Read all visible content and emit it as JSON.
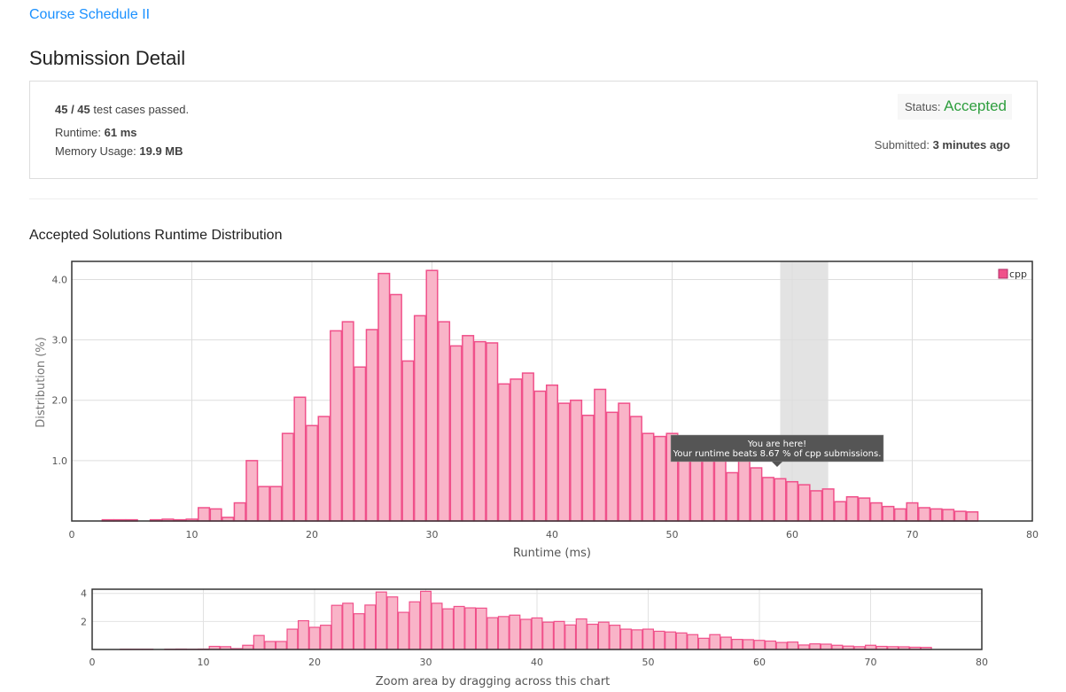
{
  "problem": {
    "title": "Course Schedule II"
  },
  "header": {
    "title": "Submission Detail"
  },
  "submission": {
    "cases_passed": "45 / 45",
    "cases_label": "test cases passed.",
    "runtime_label": "Runtime:",
    "runtime": "61 ms",
    "memory_label": "Memory Usage:",
    "memory": "19.9 MB",
    "status_label": "Status:",
    "status": "Accepted",
    "submitted_label": "Submitted:",
    "submitted": "3 minutes ago"
  },
  "distribution": {
    "title": "Accepted Solutions Runtime Distribution"
  },
  "chart_data": [
    {
      "type": "bar",
      "xlabel": "Runtime (ms)",
      "ylabel": "Distribution (%)",
      "xlim": [
        0,
        80
      ],
      "ylim": [
        0,
        4.3
      ],
      "xticks": [
        "0",
        "10",
        "20",
        "30",
        "40",
        "50",
        "60",
        "70",
        "80"
      ],
      "yticks": [
        "1.0",
        "2.0",
        "3.0",
        "4.0"
      ],
      "legend": {
        "label": "cpp",
        "placement": "top-right"
      },
      "grid": true,
      "highlight_range": [
        59,
        63
      ],
      "tooltip": {
        "line1": "You are here!",
        "line2": "Your runtime beats 8.67 % of cpp submissions."
      },
      "series": [
        {
          "name": "cpp",
          "color": "#f0508a",
          "fill": "#f9b4c8",
          "x": [
            3,
            4,
            5,
            7,
            8,
            9,
            10,
            11,
            12,
            13,
            14,
            15,
            16,
            17,
            18,
            19,
            20,
            21,
            22,
            23,
            24,
            25,
            26,
            27,
            28,
            29,
            30,
            31,
            32,
            33,
            34,
            35,
            36,
            37,
            38,
            39,
            40,
            41,
            42,
            43,
            44,
            45,
            46,
            47,
            48,
            49,
            50,
            51,
            52,
            53,
            54,
            55,
            56,
            57,
            58,
            59,
            60,
            61,
            62,
            63,
            64,
            65,
            66,
            67,
            68,
            69,
            70,
            71,
            72,
            73,
            74,
            75
          ],
          "values": [
            0.02,
            0.02,
            0.02,
            0.02,
            0.03,
            0.02,
            0.03,
            0.22,
            0.2,
            0.06,
            0.3,
            1.0,
            0.57,
            0.57,
            1.45,
            2.05,
            1.58,
            1.73,
            3.15,
            3.3,
            2.55,
            3.17,
            4.1,
            3.75,
            2.65,
            3.4,
            4.15,
            3.3,
            2.9,
            3.07,
            2.97,
            2.95,
            2.27,
            2.35,
            2.45,
            2.15,
            2.25,
            1.95,
            2.0,
            1.75,
            2.18,
            1.8,
            1.95,
            1.73,
            1.45,
            1.4,
            1.45,
            1.3,
            1.25,
            1.18,
            1.06,
            0.8,
            1.06,
            0.88,
            0.72,
            0.7,
            0.65,
            0.6,
            0.5,
            0.53,
            0.32,
            0.4,
            0.38,
            0.3,
            0.24,
            0.2,
            0.3,
            0.22,
            0.2,
            0.19,
            0.16,
            0.15
          ]
        }
      ]
    },
    {
      "type": "bar",
      "caption": "Zoom area by dragging across this chart",
      "xlim": [
        0,
        80
      ],
      "ylim": [
        0,
        4.3
      ],
      "xticks": [
        "0",
        "10",
        "20",
        "30",
        "40",
        "50",
        "60",
        "70",
        "80"
      ],
      "yticks": [
        "2",
        "4"
      ]
    }
  ]
}
